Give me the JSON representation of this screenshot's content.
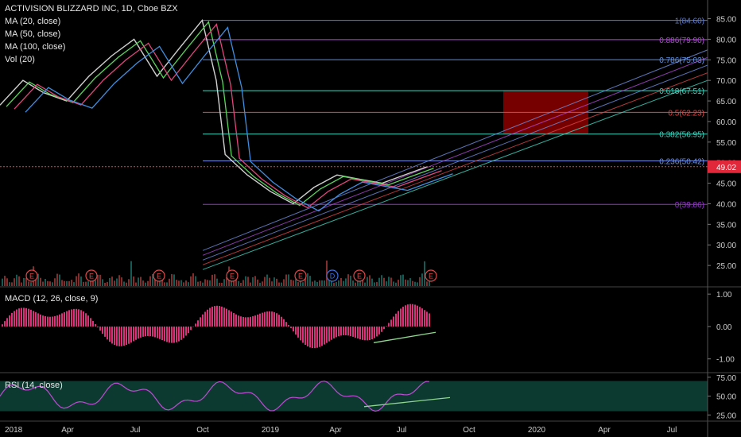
{
  "chart_data": [
    {
      "type": "line",
      "title": "ACTIVISION BLIZZARD INC, 1D, Cboe BZX",
      "indicators": [
        "MA (20, close)",
        "MA (50, close)",
        "MA (100, close)",
        "Vol (20)"
      ],
      "ylim": [
        20,
        88
      ],
      "y_ticks": [
        "85.00",
        "80.00",
        "75.00",
        "70.00",
        "65.00",
        "60.00",
        "55.00",
        "50.00",
        "45.00",
        "40.00",
        "35.00",
        "30.00",
        "25.00"
      ],
      "x_ticks": [
        "2018",
        "Apr",
        "Jul",
        "Oct",
        "2019",
        "Apr",
        "Jul",
        "Oct",
        "2020",
        "Apr",
        "Jul"
      ],
      "last_price": "49.02",
      "last_price_value": 49.02,
      "fib_levels": [
        {
          "label": "1(84.60)",
          "value": 84.6,
          "color": "#5b7bd6"
        },
        {
          "label": "0.886(79.90)",
          "value": 79.9,
          "color": "#b04ad6"
        },
        {
          "label": "0.786(75.03)",
          "value": 75.03,
          "color": "#5b8fe0"
        },
        {
          "label": "0.618(67.51)",
          "value": 67.51,
          "color": "#3fd6c0"
        },
        {
          "label": "0.5(62.23)",
          "value": 62.23,
          "color": "#e04848"
        },
        {
          "label": "0.382(56.95)",
          "value": 56.95,
          "color": "#3fd6c0"
        },
        {
          "label": "0.236(50.42)",
          "value": 50.42,
          "color": "#6f8fe0"
        },
        {
          "label": "0(39.86)",
          "value": 39.86,
          "color": "#9a2fd6"
        }
      ],
      "target_box": {
        "y_low": 56.95,
        "y_high": 67.51,
        "color": "#8b0000"
      },
      "close_prices": [
        {
          "date": "2018-01",
          "value": 64
        },
        {
          "date": "2018-02",
          "value": 70
        },
        {
          "date": "2018-03",
          "value": 67
        },
        {
          "date": "2018-04",
          "value": 65
        },
        {
          "date": "2018-05",
          "value": 71
        },
        {
          "date": "2018-06",
          "value": 76
        },
        {
          "date": "2018-07",
          "value": 80
        },
        {
          "date": "2018-08",
          "value": 71
        },
        {
          "date": "2018-09",
          "value": 78
        },
        {
          "date": "2018-10",
          "value": 84.6
        },
        {
          "date": "2018-10-20",
          "value": 70
        },
        {
          "date": "2018-11",
          "value": 52
        },
        {
          "date": "2018-12",
          "value": 47
        },
        {
          "date": "2019-01",
          "value": 43
        },
        {
          "date": "2019-02",
          "value": 40
        },
        {
          "date": "2019-03",
          "value": 44
        },
        {
          "date": "2019-04",
          "value": 47
        },
        {
          "date": "2019-05",
          "value": 46
        },
        {
          "date": "2019-06",
          "value": 45
        },
        {
          "date": "2019-07",
          "value": 47
        },
        {
          "date": "2019-08",
          "value": 49.02
        }
      ],
      "earnings_markers": [
        "E",
        "E",
        "E",
        "E",
        "E",
        "D",
        "E",
        "E"
      ]
    },
    {
      "type": "bar",
      "title": "MACD (12, 26, close, 9)",
      "y_ticks": [
        "1.00",
        "0.00",
        "-1.00"
      ],
      "ylim": [
        -1.4,
        1.2
      ]
    },
    {
      "type": "line",
      "title": "RSI (14, close)",
      "y_ticks": [
        "75.00",
        "50.00",
        "25.00"
      ],
      "ylim": [
        20,
        80
      ],
      "band": [
        30,
        70
      ]
    }
  ]
}
